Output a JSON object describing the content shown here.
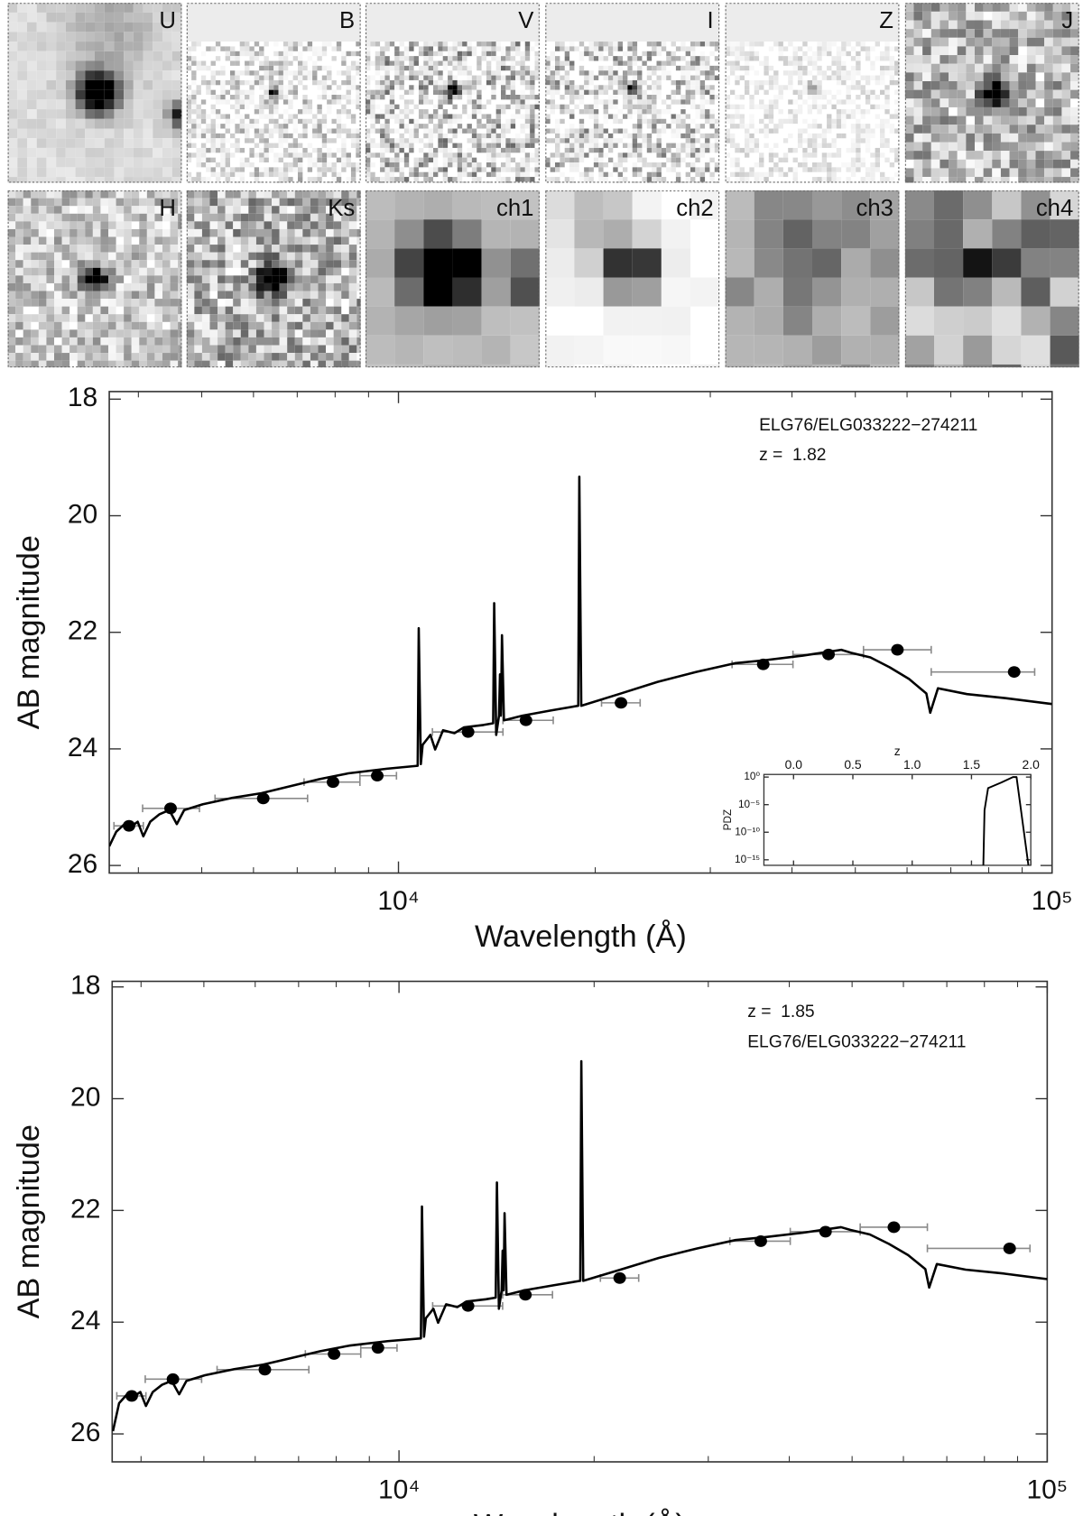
{
  "stamps": [
    "U",
    "B",
    "V",
    "I",
    "Z",
    "J",
    "H",
    "Ks",
    "ch1",
    "ch2",
    "ch3",
    "ch4"
  ],
  "chart_data": [
    {
      "type": "line",
      "log_x": true,
      "xlabel": "Wavelength (Å)",
      "ylabel": "AB magnitude",
      "annotations": [
        "ELG76/ELG033222−274211",
        "z =  1.82"
      ],
      "xlim": [
        3610,
        100000
      ],
      "ylim": [
        26.13,
        17.87
      ],
      "xticks": [
        {
          "value": 10000,
          "label": "10⁴"
        },
        {
          "value": 100000,
          "label": "10⁵"
        }
      ],
      "xminor": [
        4000,
        5000,
        6000,
        7000,
        8000,
        9000,
        20000,
        30000,
        40000,
        50000,
        60000,
        70000,
        80000,
        90000
      ],
      "yticks": [
        18,
        20,
        22,
        24,
        26
      ],
      "model": {
        "color": "#000000",
        "x": [
          3610,
          3700,
          3800,
          3890,
          3990,
          4070,
          4170,
          4310,
          4460,
          4580,
          4700,
          5020,
          5570,
          6170,
          6830,
          7560,
          8380,
          9600,
          10700,
          10740,
          10820,
          10890,
          11190,
          11380,
          11700,
          12180,
          12600,
          13490,
          13960,
          14010,
          14110,
          14250,
          14300,
          14350,
          14400,
          14500,
          15470,
          17130,
          18840,
          18910,
          19040,
          21740,
          24920,
          28550,
          32720,
          36250,
          41530,
          47590,
          49230,
          52720,
          56440,
          60410,
          64220,
          65100,
          66900,
          74100,
          84920,
          100000
        ],
        "values": [
          25.67,
          25.42,
          25.3,
          25.34,
          25.25,
          25.5,
          25.25,
          25.12,
          25.05,
          25.29,
          25.05,
          24.95,
          24.84,
          24.76,
          24.64,
          24.52,
          24.42,
          24.34,
          24.29,
          21.93,
          24.26,
          23.93,
          23.76,
          24.01,
          23.68,
          23.73,
          23.63,
          23.59,
          23.56,
          21.5,
          23.76,
          23.43,
          22.72,
          23.43,
          22.05,
          23.51,
          23.43,
          23.34,
          23.26,
          19.33,
          23.26,
          23.06,
          22.85,
          22.68,
          22.53,
          22.48,
          22.4,
          22.3,
          22.35,
          22.43,
          22.6,
          22.8,
          23.05,
          23.38,
          22.96,
          23.06,
          23.13,
          23.23
        ]
      },
      "photometry": {
        "color": "#000000",
        "error_color": "#8a8a8a",
        "x": [
          3870,
          4480,
          6210,
          7940,
          9280,
          12780,
          15670,
          21900,
          36150,
          45500,
          58000,
          87500
        ],
        "values": [
          25.32,
          25.02,
          24.85,
          24.57,
          24.46,
          23.71,
          23.51,
          23.21,
          22.55,
          22.38,
          22.3,
          22.68
        ],
        "xlow": [
          3670,
          4060,
          5240,
          7170,
          8730,
          11270,
          14450,
          20450,
          32390,
          40140,
          51460,
          65330
        ],
        "xhigh": [
          4070,
          4960,
          7260,
          8730,
          9930,
          14450,
          17250,
          23430,
          40140,
          51460,
          65330,
          94060
        ]
      }
    },
    {
      "type": "line",
      "log_x": true,
      "xlabel": "Wavelength (Å)",
      "ylabel": "AB magnitude",
      "annotations": [
        "z =  1.85",
        "ELG76/ELG033222−274211"
      ],
      "xlim": [
        3610,
        100000
      ],
      "ylim": [
        26.5,
        17.9
      ],
      "xticks": [
        {
          "value": 10000,
          "label": "10⁴"
        },
        {
          "value": 100000,
          "label": "10⁵"
        }
      ],
      "xminor": [
        4000,
        5000,
        6000,
        7000,
        8000,
        9000,
        20000,
        30000,
        40000,
        50000,
        60000,
        70000,
        80000,
        90000
      ],
      "yticks": [
        18,
        20,
        22,
        24,
        26
      ],
      "model": {
        "color": "#000000",
        "x": [
          3620,
          3700,
          3800,
          3890,
          3990,
          4070,
          4170,
          4310,
          4460,
          4580,
          4700,
          5020,
          5570,
          6170,
          6830,
          7560,
          8380,
          9600,
          10810,
          10850,
          10930,
          11000,
          11300,
          11490,
          11820,
          12300,
          12720,
          13620,
          14100,
          14160,
          14260,
          14400,
          14450,
          14500,
          14550,
          14650,
          15620,
          17300,
          19040,
          19110,
          19240,
          21960,
          25170,
          28840,
          33050,
          36610,
          41950,
          48070,
          49720,
          53250,
          57000,
          61010,
          64860,
          65750,
          67570,
          74840,
          85770,
          100000
        ],
        "values": [
          25.95,
          25.45,
          25.3,
          25.34,
          25.25,
          25.5,
          25.25,
          25.12,
          25.05,
          25.29,
          25.05,
          24.95,
          24.84,
          24.76,
          24.64,
          24.52,
          24.42,
          24.34,
          24.29,
          21.93,
          24.26,
          23.93,
          23.76,
          24.01,
          23.68,
          23.73,
          23.63,
          23.59,
          23.56,
          21.5,
          23.76,
          23.43,
          22.72,
          23.43,
          22.05,
          23.51,
          23.43,
          23.34,
          23.26,
          19.33,
          23.26,
          23.06,
          22.85,
          22.68,
          22.53,
          22.48,
          22.4,
          22.3,
          22.35,
          22.43,
          22.6,
          22.8,
          23.05,
          23.38,
          22.96,
          23.06,
          23.13,
          23.23
        ]
      },
      "photometry": {
        "color": "#000000",
        "error_color": "#8a8a8a",
        "x": [
          3870,
          4480,
          6210,
          7940,
          9280,
          12780,
          15670,
          21900,
          36150,
          45500,
          58000,
          87500
        ],
        "values": [
          25.32,
          25.02,
          24.85,
          24.57,
          24.46,
          23.71,
          23.51,
          23.21,
          22.55,
          22.38,
          22.3,
          22.68
        ],
        "xlow": [
          3670,
          4060,
          5240,
          7170,
          8730,
          11270,
          14450,
          20450,
          32390,
          40140,
          51460,
          65330
        ],
        "xhigh": [
          4070,
          4960,
          7260,
          8730,
          9930,
          14450,
          17250,
          23430,
          40140,
          51460,
          65330,
          94060
        ]
      }
    },
    {
      "type": "line",
      "log_y": true,
      "xlabel": "z",
      "ylabel": "PDZ",
      "xlim": [
        -0.25,
        2.0
      ],
      "ylim": [
        1e-16,
        3
      ],
      "xticks": [
        {
          "value": 0,
          "label": "0.0"
        },
        0.5,
        {
          "value": 1,
          "label": "1.0"
        },
        1.5,
        {
          "value": 2,
          "label": "2.0"
        }
      ],
      "yticks": [
        {
          "value": 1,
          "label": "10⁰"
        },
        {
          "value": 1e-05,
          "label": "10⁻⁵"
        },
        {
          "value": 1e-10,
          "label": "10⁻¹⁰"
        },
        {
          "value": 1e-15,
          "label": "10⁻¹⁵"
        }
      ],
      "model": {
        "color": "#000000",
        "x": [
          1.6,
          1.61,
          1.64,
          1.75,
          1.85,
          1.88,
          1.98
        ],
        "values": [
          1e-16,
          1e-06,
          0.01,
          0.1,
          1,
          1,
          1e-16
        ]
      }
    }
  ]
}
